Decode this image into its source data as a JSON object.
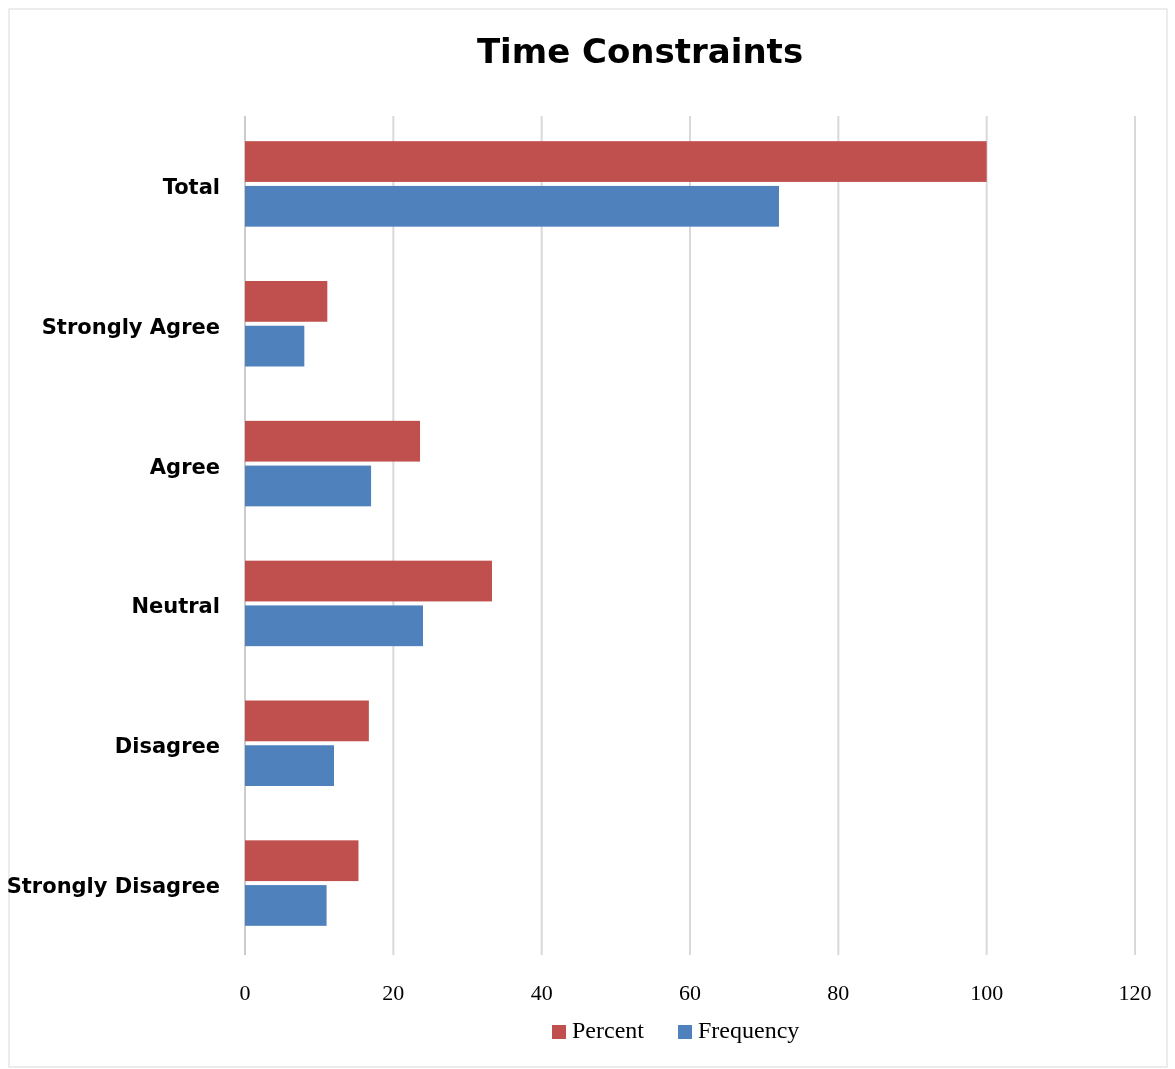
{
  "chart_data": {
    "type": "bar",
    "orientation": "horizontal",
    "title": "Time Constraints",
    "categories": [
      "Total",
      "Strongly Agree",
      "Agree",
      "Neutral",
      "Disagree",
      "Strongly Disagree"
    ],
    "series": [
      {
        "name": "Percent",
        "color": "#c0504d",
        "values": [
          100,
          11.1,
          23.6,
          33.3,
          16.7,
          15.3
        ]
      },
      {
        "name": "Frequency",
        "color": "#4f81bd",
        "values": [
          72,
          8,
          17,
          24,
          12,
          11
        ]
      }
    ],
    "xlim": [
      0,
      120
    ],
    "xticks": [
      0,
      20,
      40,
      60,
      80,
      100,
      120
    ],
    "grid": "x",
    "legend": "bottom"
  }
}
